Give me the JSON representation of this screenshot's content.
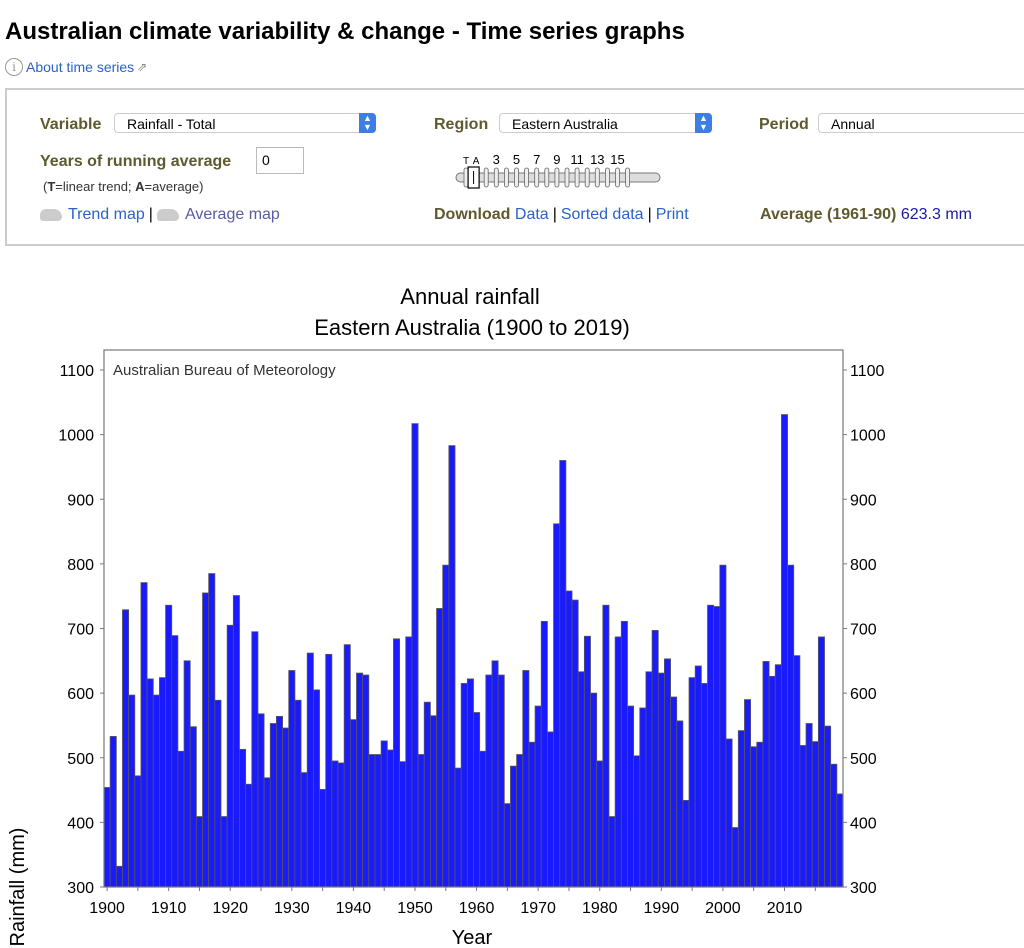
{
  "page": {
    "title": "Australian climate variability & change - Time series graphs",
    "about_link": "About time series"
  },
  "controls": {
    "variable_label": "Variable",
    "variable_value": "Rainfall - Total",
    "region_label": "Region",
    "region_value": "Eastern Australia",
    "period_label": "Period",
    "period_value": "Annual",
    "running_avg_label": "Years of running average",
    "running_avg_value": "0",
    "hint_t": "T",
    "hint_mid": "=linear trend; ",
    "hint_a": "A",
    "hint_end": "=average)",
    "hint_open": "(",
    "slider_labels": [
      "T",
      "A",
      "3",
      "5",
      "7",
      "9",
      "11",
      "13",
      "15"
    ],
    "slider_position": 1,
    "trend_map": "Trend map",
    "average_map": "Average map",
    "download_label": "Download",
    "data_link": "Data",
    "sorted_link": "Sorted data",
    "print_link": "Print",
    "separator": "|",
    "average_label": "Average (1961-90)",
    "average_value": "623.3 mm"
  },
  "chart_data": {
    "type": "bar",
    "title": "Annual rainfall",
    "subtitle": "Eastern Australia (1900 to 2019)",
    "watermark": "Australian Bureau of Meteorology",
    "xlabel": "Year",
    "ylabel": "Rainfall (mm)",
    "ylim": [
      300,
      1100
    ],
    "yticks": [
      300,
      400,
      500,
      600,
      700,
      800,
      900,
      1000,
      1100
    ],
    "xticks": [
      1900,
      1910,
      1920,
      1930,
      1940,
      1950,
      1960,
      1970,
      1980,
      1990,
      2000,
      2010
    ],
    "bar_color": "#1a1aff",
    "x_start": 1900,
    "values": [
      454,
      533,
      332,
      729,
      597,
      472,
      771,
      622,
      597,
      624,
      736,
      689,
      510,
      650,
      548,
      409,
      755,
      785,
      589,
      409,
      705,
      751,
      513,
      459,
      695,
      568,
      469,
      553,
      564,
      546,
      635,
      589,
      477,
      662,
      605,
      451,
      660,
      495,
      492,
      675,
      559,
      631,
      628,
      505,
      505,
      526,
      512,
      684,
      494,
      687,
      1017,
      505,
      586,
      565,
      731,
      798,
      983,
      484,
      615,
      622,
      570,
      510,
      628,
      650,
      628,
      429,
      487,
      505,
      635,
      524,
      580,
      711,
      540,
      862,
      960,
      758,
      744,
      633,
      688,
      600,
      495,
      736,
      409,
      687,
      711,
      580,
      503,
      577,
      633,
      697,
      631,
      653,
      594,
      557,
      434,
      624,
      642,
      615,
      736,
      734,
      798,
      529,
      392,
      542,
      590,
      517,
      524,
      649,
      626,
      644,
      1031,
      798,
      658,
      519,
      553,
      525,
      687,
      549,
      490,
      444
    ]
  }
}
